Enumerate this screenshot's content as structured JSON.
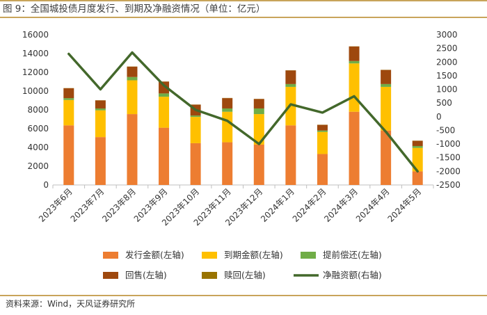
{
  "title": "图 9：全国城投债月度发行、到期及净融资情况（单位：亿元）",
  "source": "资料来源：Wind，天风证券研究所",
  "colors": {
    "issuance": "#ED7D31",
    "maturity": "#FFC000",
    "early": "#70AD47",
    "putback": "#9E480E",
    "redeem": "#997300",
    "net": "#43682B",
    "axis": "#BFBFBF",
    "border": "#C8A45A"
  },
  "chart_data": {
    "type": "bar",
    "categories": [
      "2023年6月",
      "2023年7月",
      "2023年8月",
      "2023年9月",
      "2023年10月",
      "2023年11月",
      "2023年12月",
      "2024年1月",
      "2024年2月",
      "2024年3月",
      "2024年4月",
      "2024年5月"
    ],
    "left_axis": {
      "ylim": [
        0,
        16000
      ],
      "ticks": [
        "0",
        "2000",
        "4000",
        "6000",
        "8000",
        "10000",
        "12000",
        "14000",
        "16000"
      ]
    },
    "right_axis": {
      "ylim": [
        -2500,
        3000
      ],
      "ticks": [
        "-2500",
        "-2000",
        "-1500",
        "-1000",
        "-500",
        "0",
        "500",
        "1000",
        "1500",
        "2000",
        "2500",
        "3000"
      ]
    },
    "series": [
      {
        "name": "发行金额(左轴)",
        "kind": "bar",
        "axis": "left",
        "color_key": "issuance",
        "values": [
          6350,
          5100,
          7550,
          6100,
          4450,
          4550,
          4300,
          6350,
          3300,
          7800,
          5800,
          1450
        ]
      },
      {
        "name": "到期金额(左轴)",
        "kind": "bar",
        "axis": "left",
        "color_key": "maturity",
        "values": [
          2700,
          2850,
          3600,
          3300,
          2800,
          3250,
          3250,
          4100,
          2350,
          5150,
          4650,
          2500
        ]
      },
      {
        "name": "提前偿还(左轴)",
        "kind": "bar",
        "axis": "left",
        "color_key": "early",
        "values": [
          200,
          200,
          350,
          350,
          150,
          350,
          600,
          300,
          150,
          250,
          300,
          200
        ]
      },
      {
        "name": "回售(左轴)",
        "kind": "bar",
        "axis": "left",
        "color_key": "putback",
        "values": [
          1050,
          850,
          1100,
          1250,
          1150,
          1100,
          1000,
          1450,
          600,
          1550,
          1500,
          550
        ]
      },
      {
        "name": "赎回(左轴)",
        "kind": "bar",
        "axis": "left",
        "color_key": "redeem",
        "values": [
          20,
          20,
          20,
          20,
          20,
          20,
          20,
          20,
          20,
          20,
          20,
          20
        ]
      },
      {
        "name": "净融资额(右轴)",
        "kind": "line",
        "axis": "right",
        "color_key": "net",
        "values": [
          2300,
          1000,
          2350,
          1150,
          250,
          -150,
          -1000,
          450,
          150,
          750,
          -550,
          -2000
        ]
      }
    ]
  }
}
